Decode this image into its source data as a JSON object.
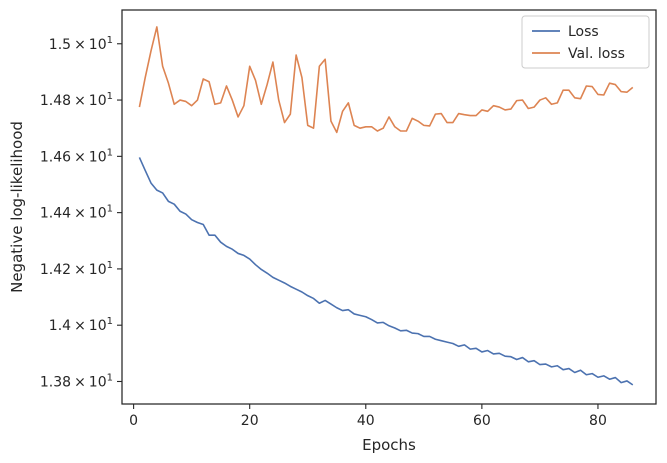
{
  "chart_data": {
    "type": "line",
    "xlabel": "Epochs",
    "ylabel": "Negative log-likelihood",
    "xlim": [
      -2,
      90
    ],
    "ylim": [
      13.72,
      15.12
    ],
    "x_ticks": [
      0,
      20,
      40,
      60,
      80
    ],
    "x_tick_labels": [
      "0",
      "20",
      "40",
      "60",
      "80"
    ],
    "y_ticks": [
      13.8,
      14.0,
      14.2,
      14.4,
      14.6,
      14.8,
      15.0
    ],
    "y_tick_labels": [
      {
        "mantissa": "1.38",
        "times": "×",
        "base": "10",
        "exp": "1"
      },
      {
        "mantissa": "1.4",
        "times": "×",
        "base": "10",
        "exp": "1"
      },
      {
        "mantissa": "1.42",
        "times": "×",
        "base": "10",
        "exp": "1"
      },
      {
        "mantissa": "1.44",
        "times": "×",
        "base": "10",
        "exp": "1"
      },
      {
        "mantissa": "1.46",
        "times": "×",
        "base": "10",
        "exp": "1"
      },
      {
        "mantissa": "1.48",
        "times": "×",
        "base": "10",
        "exp": "1"
      },
      {
        "mantissa": "1.5",
        "times": "×",
        "base": "10",
        "exp": "1"
      }
    ],
    "legend_position": "top-right",
    "grid": false,
    "series": [
      {
        "name": "Loss",
        "color": "#4c72b0",
        "x": [
          1,
          2,
          3,
          4,
          5,
          6,
          7,
          8,
          9,
          10,
          11,
          12,
          13,
          14,
          15,
          16,
          17,
          18,
          19,
          20,
          21,
          22,
          23,
          24,
          25,
          26,
          27,
          28,
          29,
          30,
          31,
          32,
          33,
          34,
          35,
          36,
          37,
          38,
          39,
          40,
          41,
          42,
          43,
          44,
          45,
          46,
          47,
          48,
          49,
          50,
          51,
          52,
          53,
          54,
          55,
          56,
          57,
          58,
          59,
          60,
          61,
          62,
          63,
          64,
          65,
          66,
          67,
          68,
          69,
          70,
          71,
          72,
          73,
          74,
          75,
          76,
          77,
          78,
          79,
          80,
          81,
          82,
          83,
          84,
          85,
          86
        ],
        "values": [
          14.596,
          14.55,
          14.505,
          14.48,
          14.47,
          14.44,
          14.43,
          14.405,
          14.395,
          14.375,
          14.365,
          14.358,
          14.32,
          14.32,
          14.295,
          14.28,
          14.27,
          14.255,
          14.248,
          14.235,
          14.215,
          14.198,
          14.185,
          14.17,
          14.16,
          14.15,
          14.138,
          14.128,
          14.118,
          14.105,
          14.095,
          14.078,
          14.088,
          14.075,
          14.062,
          14.052,
          14.055,
          14.04,
          14.035,
          14.03,
          14.02,
          14.008,
          14.01,
          13.998,
          13.99,
          13.98,
          13.982,
          13.972,
          13.97,
          13.96,
          13.96,
          13.95,
          13.945,
          13.94,
          13.935,
          13.925,
          13.93,
          13.915,
          13.918,
          13.905,
          13.91,
          13.898,
          13.9,
          13.89,
          13.888,
          13.878,
          13.885,
          13.87,
          13.874,
          13.86,
          13.862,
          13.852,
          13.856,
          13.842,
          13.846,
          13.832,
          13.84,
          13.824,
          13.828,
          13.815,
          13.82,
          13.808,
          13.814,
          13.796,
          13.802,
          13.788
        ]
      },
      {
        "name": "Val. loss",
        "color": "#dd8452",
        "x": [
          1,
          2,
          3,
          4,
          5,
          6,
          7,
          8,
          9,
          10,
          11,
          12,
          13,
          14,
          15,
          16,
          17,
          18,
          19,
          20,
          21,
          22,
          23,
          24,
          25,
          26,
          27,
          28,
          29,
          30,
          31,
          32,
          33,
          34,
          35,
          36,
          37,
          38,
          39,
          40,
          41,
          42,
          43,
          44,
          45,
          46,
          47,
          48,
          49,
          50,
          51,
          52,
          53,
          54,
          55,
          56,
          57,
          58,
          59,
          60,
          61,
          62,
          63,
          64,
          65,
          66,
          67,
          68,
          69,
          70,
          71,
          72,
          73,
          74,
          75,
          76,
          77,
          78,
          79,
          80,
          81,
          82,
          83,
          84,
          85,
          86
        ],
        "values": [
          14.775,
          14.88,
          14.975,
          15.06,
          14.92,
          14.86,
          14.785,
          14.8,
          14.795,
          14.78,
          14.8,
          14.875,
          14.865,
          14.785,
          14.79,
          14.85,
          14.8,
          14.74,
          14.78,
          14.92,
          14.87,
          14.785,
          14.855,
          14.935,
          14.8,
          14.72,
          14.75,
          14.96,
          14.88,
          14.71,
          14.7,
          14.92,
          14.945,
          14.725,
          14.685,
          14.76,
          14.79,
          14.71,
          14.7,
          14.705,
          14.705,
          14.69,
          14.7,
          14.74,
          14.705,
          14.69,
          14.69,
          14.735,
          14.725,
          14.71,
          14.708,
          14.75,
          14.752,
          14.72,
          14.72,
          14.752,
          14.748,
          14.745,
          14.745,
          14.765,
          14.76,
          14.78,
          14.775,
          14.765,
          14.768,
          14.798,
          14.8,
          14.77,
          14.775,
          14.8,
          14.808,
          14.785,
          14.79,
          14.835,
          14.835,
          14.808,
          14.805,
          14.85,
          14.848,
          14.82,
          14.818,
          14.86,
          14.855,
          14.83,
          14.828,
          14.845
        ]
      }
    ]
  }
}
